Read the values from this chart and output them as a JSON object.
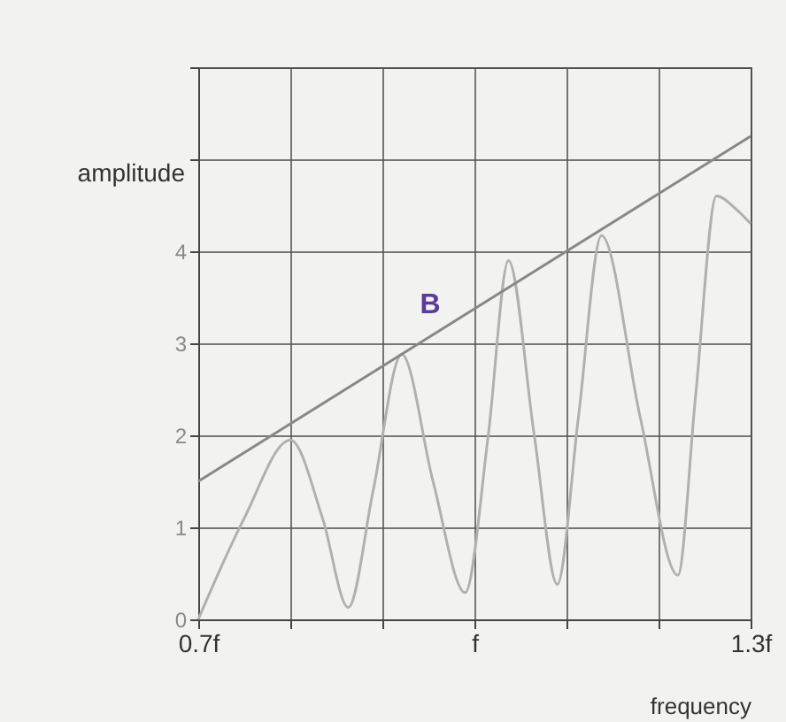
{
  "chart_data": {
    "type": "line",
    "xlabel": "frequency",
    "ylabel": "amplitude",
    "xlim": [
      0.7,
      1.3
    ],
    "ylim": [
      0,
      6
    ],
    "xticks": [
      {
        "value": 0.7,
        "label": "0.7f"
      },
      {
        "value": 0.8,
        "label": null
      },
      {
        "value": 0.9,
        "label": null
      },
      {
        "value": 1.0,
        "label": "f"
      },
      {
        "value": 1.1,
        "label": null
      },
      {
        "value": 1.2,
        "label": null
      },
      {
        "value": 1.3,
        "label": "1.3f"
      }
    ],
    "yticks": [
      0,
      1,
      2,
      3,
      4,
      {
        "value": 5,
        "label": null
      },
      {
        "value": 6,
        "label": null
      }
    ],
    "grid": true,
    "marker": "none",
    "line_style": "solid",
    "series": [
      {
        "color": "#b0b0b0",
        "x": [
          0.7,
          0.75,
          0.8,
          0.835,
          0.863,
          0.89,
          0.921,
          0.955,
          0.99,
          1.015,
          1.037,
          1.065,
          1.09,
          1.113,
          1.138,
          1.18,
          1.221,
          1.24,
          1.263,
          1.285,
          1.3
        ],
        "values": [
          0,
          1.1,
          1.95,
          1.1,
          0.13,
          1.4,
          2.88,
          1.5,
          0.29,
          2.0,
          3.9,
          2.0,
          0.38,
          2.2,
          4.17,
          2.2,
          0.48,
          2.4,
          4.6,
          4.45,
          4.3
        ]
      },
      {
        "color": "#888888",
        "x": [
          0.7,
          1.3
        ],
        "values": [
          1.5,
          5.25
        ]
      }
    ],
    "annotations": [
      "B"
    ]
  }
}
